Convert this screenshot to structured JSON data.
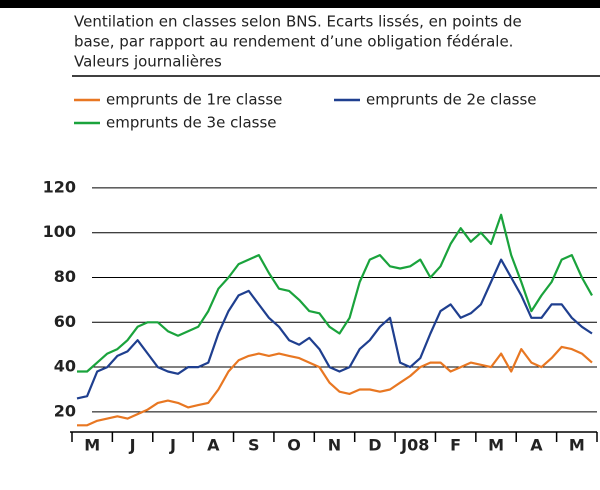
{
  "chart_data": {
    "type": "line",
    "subtitle": [
      "Ventilation en classes selon BNS. Ecarts lissés, en points de",
      "base, par rapport au rendement d’une obligation fédérale.",
      "Valeurs journalières"
    ],
    "categories": [
      "M",
      null,
      null,
      null,
      "J",
      null,
      null,
      null,
      "J",
      null,
      null,
      null,
      "A",
      null,
      null,
      null,
      "S",
      null,
      null,
      null,
      "O",
      null,
      null,
      null,
      "N",
      null,
      null,
      null,
      "D",
      null,
      null,
      null,
      "J08",
      null,
      null,
      null,
      "F",
      null,
      null,
      null,
      "M",
      null,
      null,
      null,
      "A",
      null,
      null,
      null,
      "M",
      null,
      null,
      null
    ],
    "series": [
      {
        "name": "emprunts de 1re classe",
        "color": "#e87722",
        "values": [
          14,
          14,
          16,
          17,
          18,
          17,
          19,
          21,
          24,
          25,
          24,
          22,
          23,
          24,
          30,
          38,
          43,
          45,
          46,
          45,
          46,
          45,
          44,
          42,
          40,
          33,
          29,
          28,
          30,
          30,
          29,
          30,
          33,
          36,
          40,
          42,
          42,
          38,
          40,
          42,
          41,
          40,
          46,
          38,
          48,
          42,
          40,
          44,
          49,
          48,
          46,
          42
        ]
      },
      {
        "name": "emprunts de 2e classe",
        "color": "#1f3f8f",
        "values": [
          26,
          27,
          38,
          40,
          45,
          47,
          52,
          46,
          40,
          38,
          37,
          40,
          40,
          42,
          55,
          65,
          72,
          74,
          68,
          62,
          58,
          52,
          50,
          53,
          48,
          40,
          38,
          40,
          48,
          52,
          58,
          62,
          42,
          40,
          44,
          55,
          65,
          68,
          62,
          64,
          68,
          78,
          88,
          80,
          72,
          62,
          62,
          68,
          68,
          62,
          58,
          55
        ]
      },
      {
        "name": "emprunts de 3e classe",
        "color": "#1aa33c",
        "values": [
          38,
          38,
          42,
          46,
          48,
          52,
          58,
          60,
          60,
          56,
          54,
          56,
          58,
          65,
          75,
          80,
          86,
          88,
          90,
          82,
          75,
          74,
          70,
          65,
          64,
          58,
          55,
          62,
          78,
          88,
          90,
          85,
          84,
          85,
          88,
          80,
          85,
          95,
          102,
          96,
          100,
          95,
          108,
          90,
          78,
          65,
          72,
          78,
          88,
          90,
          80,
          72
        ]
      }
    ],
    "ylim": [
      11,
      128
    ],
    "yticks": [
      20,
      40,
      60,
      80,
      100,
      120
    ],
    "grid": true
  }
}
